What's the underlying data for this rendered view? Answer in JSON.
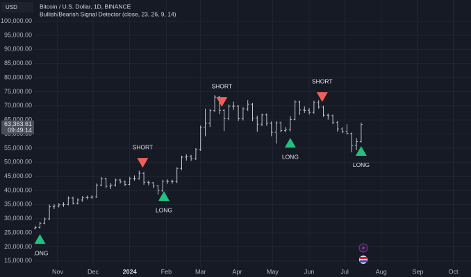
{
  "header": {
    "currency": "USD",
    "symbol": "Bitcoin / U.S. Dollar, 1D, BINANCE",
    "indicator": "Bullish/Bearish Signal Detector (close, 23, 26, 9, 14)"
  },
  "chart_data": {
    "type": "ohlc",
    "color": "#c3c6ce",
    "grid": true,
    "x": [
      -19,
      -15,
      -11,
      -7,
      -3,
      1,
      5,
      9,
      13,
      17,
      21,
      25,
      29,
      33,
      37,
      41,
      45,
      49,
      53,
      57,
      61,
      65,
      69,
      73,
      77,
      81,
      85,
      89,
      93,
      97,
      101,
      105,
      109,
      113,
      117,
      121,
      125,
      129,
      133,
      137,
      141,
      145,
      149,
      153,
      157,
      161,
      165,
      169,
      173,
      177,
      181,
      185,
      189,
      193,
      197,
      201,
      205,
      209,
      213,
      217,
      221,
      225,
      229,
      233,
      237,
      241,
      245,
      249,
      253,
      257
    ],
    "open": [
      26600,
      26900,
      28400,
      29900,
      34200,
      34500,
      34900,
      35000,
      37300,
      35500,
      36600,
      37400,
      37500,
      37700,
      41900,
      44200,
      41500,
      41900,
      43700,
      43000,
      42100,
      44200,
      44200,
      46100,
      42900,
      42700,
      41600,
      40000,
      43300,
      43200,
      43100,
      47800,
      51800,
      52100,
      51300,
      54500,
      62400,
      63800,
      68300,
      73100,
      68400,
      65500,
      69900,
      69900,
      65400,
      68900,
      70600,
      65700,
      63500,
      66800,
      63800,
      60600,
      63900,
      61200,
      61500,
      65200,
      71400,
      68500,
      68400,
      67700,
      71100,
      69600,
      66700,
      66500,
      64100,
      61800,
      60900,
      60200,
      55900,
      57300
    ],
    "high": [
      27500,
      28900,
      30400,
      35000,
      35100,
      35500,
      35800,
      37900,
      37800,
      37200,
      38000,
      38200,
      38300,
      42500,
      44700,
      44500,
      42600,
      44200,
      44100,
      43500,
      44800,
      45300,
      47000,
      46500,
      43500,
      43000,
      42000,
      43800,
      43900,
      43800,
      48200,
      52300,
      52800,
      52600,
      55000,
      63000,
      69000,
      68900,
      73800,
      73500,
      68800,
      70500,
      71500,
      70200,
      69500,
      72000,
      71000,
      66500,
      67200,
      67300,
      64500,
      64500,
      64400,
      62500,
      66300,
      71900,
      71800,
      69800,
      69200,
      71800,
      72000,
      70000,
      67300,
      66900,
      64600,
      62400,
      63500,
      60500,
      58600,
      64000
    ],
    "low": [
      26200,
      26500,
      28000,
      29500,
      33400,
      34000,
      34200,
      34700,
      35000,
      35000,
      36000,
      36800,
      37000,
      37300,
      41500,
      40800,
      40500,
      41400,
      42500,
      41500,
      41800,
      43500,
      43800,
      42000,
      41800,
      40800,
      38600,
      39500,
      42300,
      42400,
      42600,
      47200,
      50600,
      50500,
      50800,
      54000,
      59200,
      62500,
      67800,
      67000,
      61000,
      64900,
      68500,
      64600,
      64800,
      68200,
      64500,
      60800,
      62800,
      62900,
      59200,
      56600,
      60600,
      60600,
      60900,
      64900,
      66800,
      67500,
      66900,
      67200,
      69000,
      66100,
      65100,
      63500,
      60800,
      60300,
      59800,
      53500,
      54300,
      57000
    ],
    "close": [
      26900,
      28400,
      29900,
      34200,
      34500,
      34900,
      35000,
      37300,
      35500,
      36600,
      37400,
      37500,
      37700,
      41900,
      44200,
      41500,
      41900,
      43700,
      43000,
      42100,
      44200,
      44200,
      46100,
      42900,
      42700,
      41600,
      40000,
      43300,
      43200,
      43100,
      47800,
      51800,
      52100,
      51300,
      54500,
      62400,
      63800,
      68300,
      73100,
      68400,
      65500,
      69900,
      69900,
      65400,
      68900,
      70600,
      65700,
      63500,
      66800,
      63800,
      60600,
      63900,
      61200,
      61500,
      65200,
      71400,
      68500,
      68400,
      67700,
      71100,
      69600,
      66700,
      66500,
      64100,
      61800,
      60900,
      60200,
      55900,
      57300,
      63400
    ],
    "xlim": [
      -20,
      350
    ],
    "xticks": [
      {
        "value": 0,
        "label": "Nov"
      },
      {
        "value": 30,
        "label": "Dec"
      },
      {
        "value": 61,
        "label": "2024"
      },
      {
        "value": 92,
        "label": "Feb"
      },
      {
        "value": 121,
        "label": "Mar"
      },
      {
        "value": 152,
        "label": "Apr"
      },
      {
        "value": 182,
        "label": "May"
      },
      {
        "value": 213,
        "label": "Jun"
      },
      {
        "value": 243,
        "label": "Jul"
      },
      {
        "value": 274,
        "label": "Aug"
      },
      {
        "value": 305,
        "label": "Sep"
      },
      {
        "value": 335,
        "label": "Oct"
      }
    ],
    "ylim": [
      13000,
      107500
    ],
    "yticks": [
      {
        "value": 15000,
        "label": "15,000.00"
      },
      {
        "value": 20000,
        "label": "20,000.00"
      },
      {
        "value": 25000,
        "label": "25,000.00"
      },
      {
        "value": 30000,
        "label": "30,000.00"
      },
      {
        "value": 35000,
        "label": "35,000.00"
      },
      {
        "value": 40000,
        "label": "40,000.00"
      },
      {
        "value": 45000,
        "label": "45,000.00"
      },
      {
        "value": 50000,
        "label": "50,000.00"
      },
      {
        "value": 55000,
        "label": "55,000.00"
      },
      {
        "value": 60000,
        "label": "60,000.00"
      },
      {
        "value": 65000,
        "label": "65,000.00"
      },
      {
        "value": 70000,
        "label": "70,000.00"
      },
      {
        "value": 75000,
        "label": "75,000.00"
      },
      {
        "value": 80000,
        "label": "80,000.00"
      },
      {
        "value": 85000,
        "label": "85,000.00"
      },
      {
        "value": 90000,
        "label": "90,000.00"
      },
      {
        "value": 95000,
        "label": "95,000.00"
      },
      {
        "value": 100000,
        "label": "100,000.00"
      }
    ],
    "last_price": {
      "value": 63363.61,
      "label": "63,363.61"
    },
    "countdown": "09:49:14",
    "signals": [
      {
        "label": "LONG",
        "x": -15,
        "y": 22800,
        "color": "#22c17e"
      },
      {
        "label": "SHORT",
        "x": 72,
        "y": 49800,
        "color": "#f0605a"
      },
      {
        "label": "LONG",
        "x": 90,
        "y": 38000,
        "color": "#22c17e"
      },
      {
        "label": "SHORT",
        "x": 139,
        "y": 71400,
        "color": "#f0605a"
      },
      {
        "label": "LONG",
        "x": 197,
        "y": 56900,
        "color": "#22c17e"
      },
      {
        "label": "SHORT",
        "x": 224,
        "y": 73100,
        "color": "#f0605a"
      },
      {
        "label": "LONG",
        "x": 257,
        "y": 54000,
        "color": "#22c17e"
      }
    ]
  }
}
